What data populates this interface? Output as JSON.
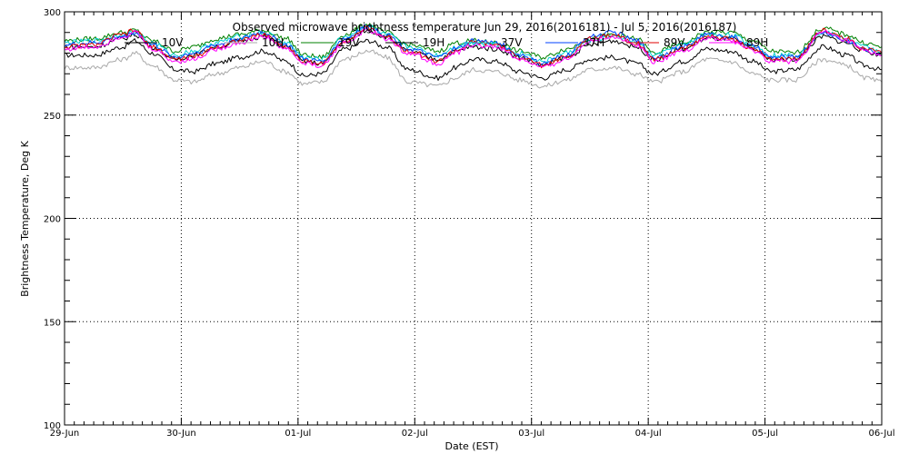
{
  "chart_data": {
    "type": "line",
    "title": "Observed microwave brightness temperature Jun 29, 2016(2016181) - Jul  5, 2016(2016187)",
    "xlabel": "Date (EST)",
    "ylabel": "Brightness Temperature, Deg K",
    "xlim": [
      0,
      7
    ],
    "ylim": [
      100,
      300
    ],
    "grid": true,
    "legend_placement": "top",
    "x_ticks": [
      {
        "value": 0,
        "label": "29-Jun"
      },
      {
        "value": 1,
        "label": "30-Jun"
      },
      {
        "value": 2,
        "label": "01-Jul"
      },
      {
        "value": 3,
        "label": "02-Jul"
      },
      {
        "value": 4,
        "label": "03-Jul"
      },
      {
        "value": 5,
        "label": "04-Jul"
      },
      {
        "value": 6,
        "label": "05-Jul"
      },
      {
        "value": 7,
        "label": "06-Jul"
      }
    ],
    "y_ticks": [
      100,
      150,
      200,
      250,
      300
    ],
    "y_tick_labels": [
      "100",
      "150",
      "200",
      "250",
      "300"
    ],
    "x": [
      0,
      0.25,
      0.5,
      0.6,
      0.75,
      0.95,
      1.1,
      1.3,
      1.5,
      1.7,
      1.9,
      2.05,
      2.2,
      2.4,
      2.6,
      2.75,
      2.95,
      3.2,
      3.35,
      3.5,
      3.7,
      3.9,
      4.1,
      4.3,
      4.5,
      4.7,
      4.9,
      5.05,
      5.3,
      5.5,
      5.7,
      5.9,
      6.05,
      6.25,
      6.5,
      6.7,
      6.85,
      7
    ],
    "series": [
      {
        "name": "10V",
        "color": "#000000",
        "values": [
          279,
          279,
          283,
          286,
          280,
          272,
          271,
          275,
          278,
          281,
          276,
          269,
          270,
          282,
          286,
          283,
          272,
          268,
          273,
          277,
          276,
          271,
          268,
          272,
          277,
          278,
          275,
          270,
          276,
          282,
          281,
          276,
          271,
          272,
          283,
          279,
          274,
          272
        ]
      },
      {
        "name": "10H",
        "color": "#a8a8a8",
        "values": [
          273,
          273,
          277,
          280,
          274,
          267,
          266,
          270,
          273,
          276,
          271,
          265,
          266,
          277,
          281,
          278,
          266,
          264,
          268,
          272,
          271,
          267,
          264,
          267,
          272,
          273,
          270,
          266,
          271,
          277,
          276,
          270,
          267,
          267,
          277,
          274,
          268,
          266
        ]
      },
      {
        "name": "19V",
        "color": "#008000",
        "values": [
          286,
          287,
          290,
          291,
          286,
          281,
          283,
          287,
          289,
          291,
          287,
          279,
          278,
          289,
          294,
          290,
          284,
          281,
          285,
          286,
          285,
          281,
          278,
          282,
          287,
          289,
          287,
          280,
          285,
          290,
          290,
          286,
          281,
          280,
          292,
          289,
          285,
          283
        ]
      },
      {
        "name": "19H",
        "color": "#000000",
        "values": [
          283,
          283,
          287,
          289,
          283,
          277,
          279,
          283,
          286,
          288,
          283,
          276,
          275,
          286,
          291,
          288,
          281,
          277,
          281,
          283,
          282,
          278,
          274,
          278,
          284,
          286,
          283,
          277,
          282,
          287,
          287,
          282,
          277,
          277,
          288,
          285,
          281,
          279
        ]
      },
      {
        "name": "37V",
        "color": "#00d0d0",
        "values": [
          285,
          286,
          289,
          290,
          285,
          279,
          281,
          285,
          288,
          290,
          285,
          278,
          277,
          288,
          293,
          289,
          283,
          279,
          283,
          285,
          284,
          280,
          276,
          280,
          286,
          288,
          285,
          279,
          284,
          289,
          289,
          284,
          279,
          279,
          290,
          287,
          283,
          281
        ]
      },
      {
        "name": "37H",
        "color": "#0040ff",
        "values": [
          284,
          285,
          288,
          290,
          284,
          278,
          280,
          284,
          287,
          290,
          284,
          277,
          276,
          287,
          293,
          289,
          282,
          278,
          282,
          286,
          285,
          279,
          275,
          279,
          288,
          290,
          286,
          278,
          283,
          289,
          288,
          283,
          278,
          278,
          290,
          286,
          282,
          280
        ]
      },
      {
        "name": "89V",
        "color": "#e00000",
        "values": [
          283,
          284,
          289,
          291,
          283,
          277,
          278,
          283,
          286,
          289,
          283,
          276,
          275,
          286,
          292,
          288,
          281,
          276,
          281,
          285,
          284,
          278,
          274,
          278,
          287,
          289,
          285,
          277,
          282,
          288,
          287,
          282,
          277,
          277,
          291,
          287,
          282,
          280
        ]
      },
      {
        "name": "89H",
        "color": "#ff00ff",
        "values": [
          282,
          283,
          288,
          290,
          282,
          276,
          277,
          282,
          285,
          288,
          282,
          275,
          274,
          285,
          291,
          287,
          280,
          275,
          280,
          284,
          283,
          277,
          273,
          277,
          286,
          288,
          284,
          276,
          281,
          287,
          286,
          281,
          276,
          276,
          290,
          286,
          281,
          279
        ]
      }
    ]
  }
}
